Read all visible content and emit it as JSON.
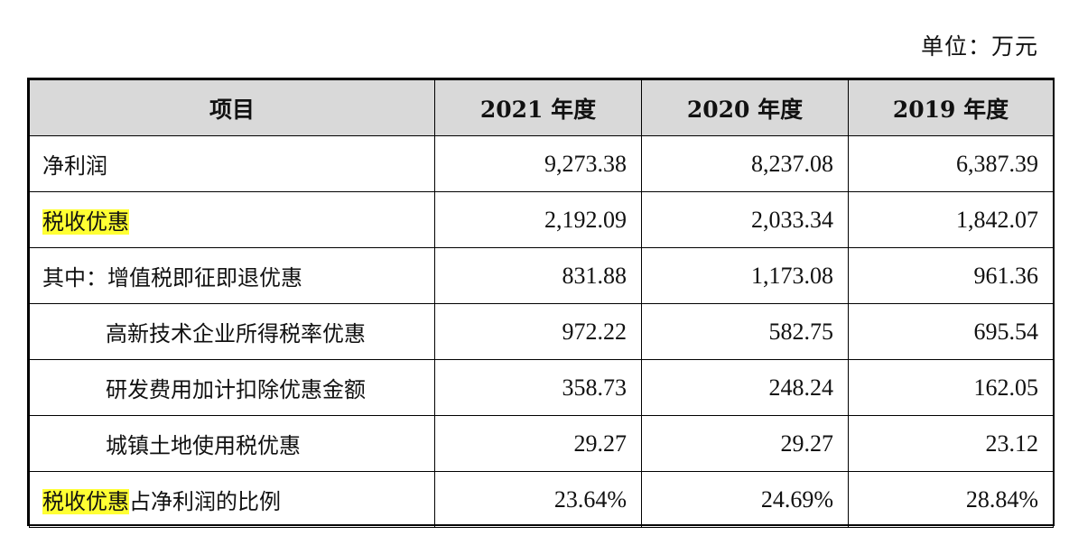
{
  "unit_label": "单位：万元",
  "table": {
    "headers": [
      "项目",
      "2021 年度",
      "2020 年度",
      "2019 年度"
    ],
    "rows": [
      {
        "label": "净利润",
        "values": [
          "9,273.38",
          "8,237.08",
          "6,387.39"
        ]
      },
      {
        "label": "税收优惠",
        "values": [
          "2,192.09",
          "2,033.34",
          "1,842.07"
        ]
      },
      {
        "label": "其中：增值税即征即退优惠",
        "values": [
          "831.88",
          "1,173.08",
          "961.36"
        ]
      },
      {
        "label": "高新技术企业所得税率优惠",
        "values": [
          "972.22",
          "582.75",
          "695.54"
        ]
      },
      {
        "label": "研发费用加计扣除优惠金额",
        "values": [
          "358.73",
          "248.24",
          "162.05"
        ]
      },
      {
        "label": "城镇土地使用税优惠",
        "values": [
          "29.27",
          "29.27",
          "23.12"
        ]
      },
      {
        "label_highlight": "税收优惠",
        "label_rest": "占净利润的比例",
        "values": [
          "23.64%",
          "24.69%",
          "28.84%"
        ]
      }
    ]
  },
  "colors": {
    "header_bg": "#d9d9d9",
    "highlight": "#ffff33"
  }
}
